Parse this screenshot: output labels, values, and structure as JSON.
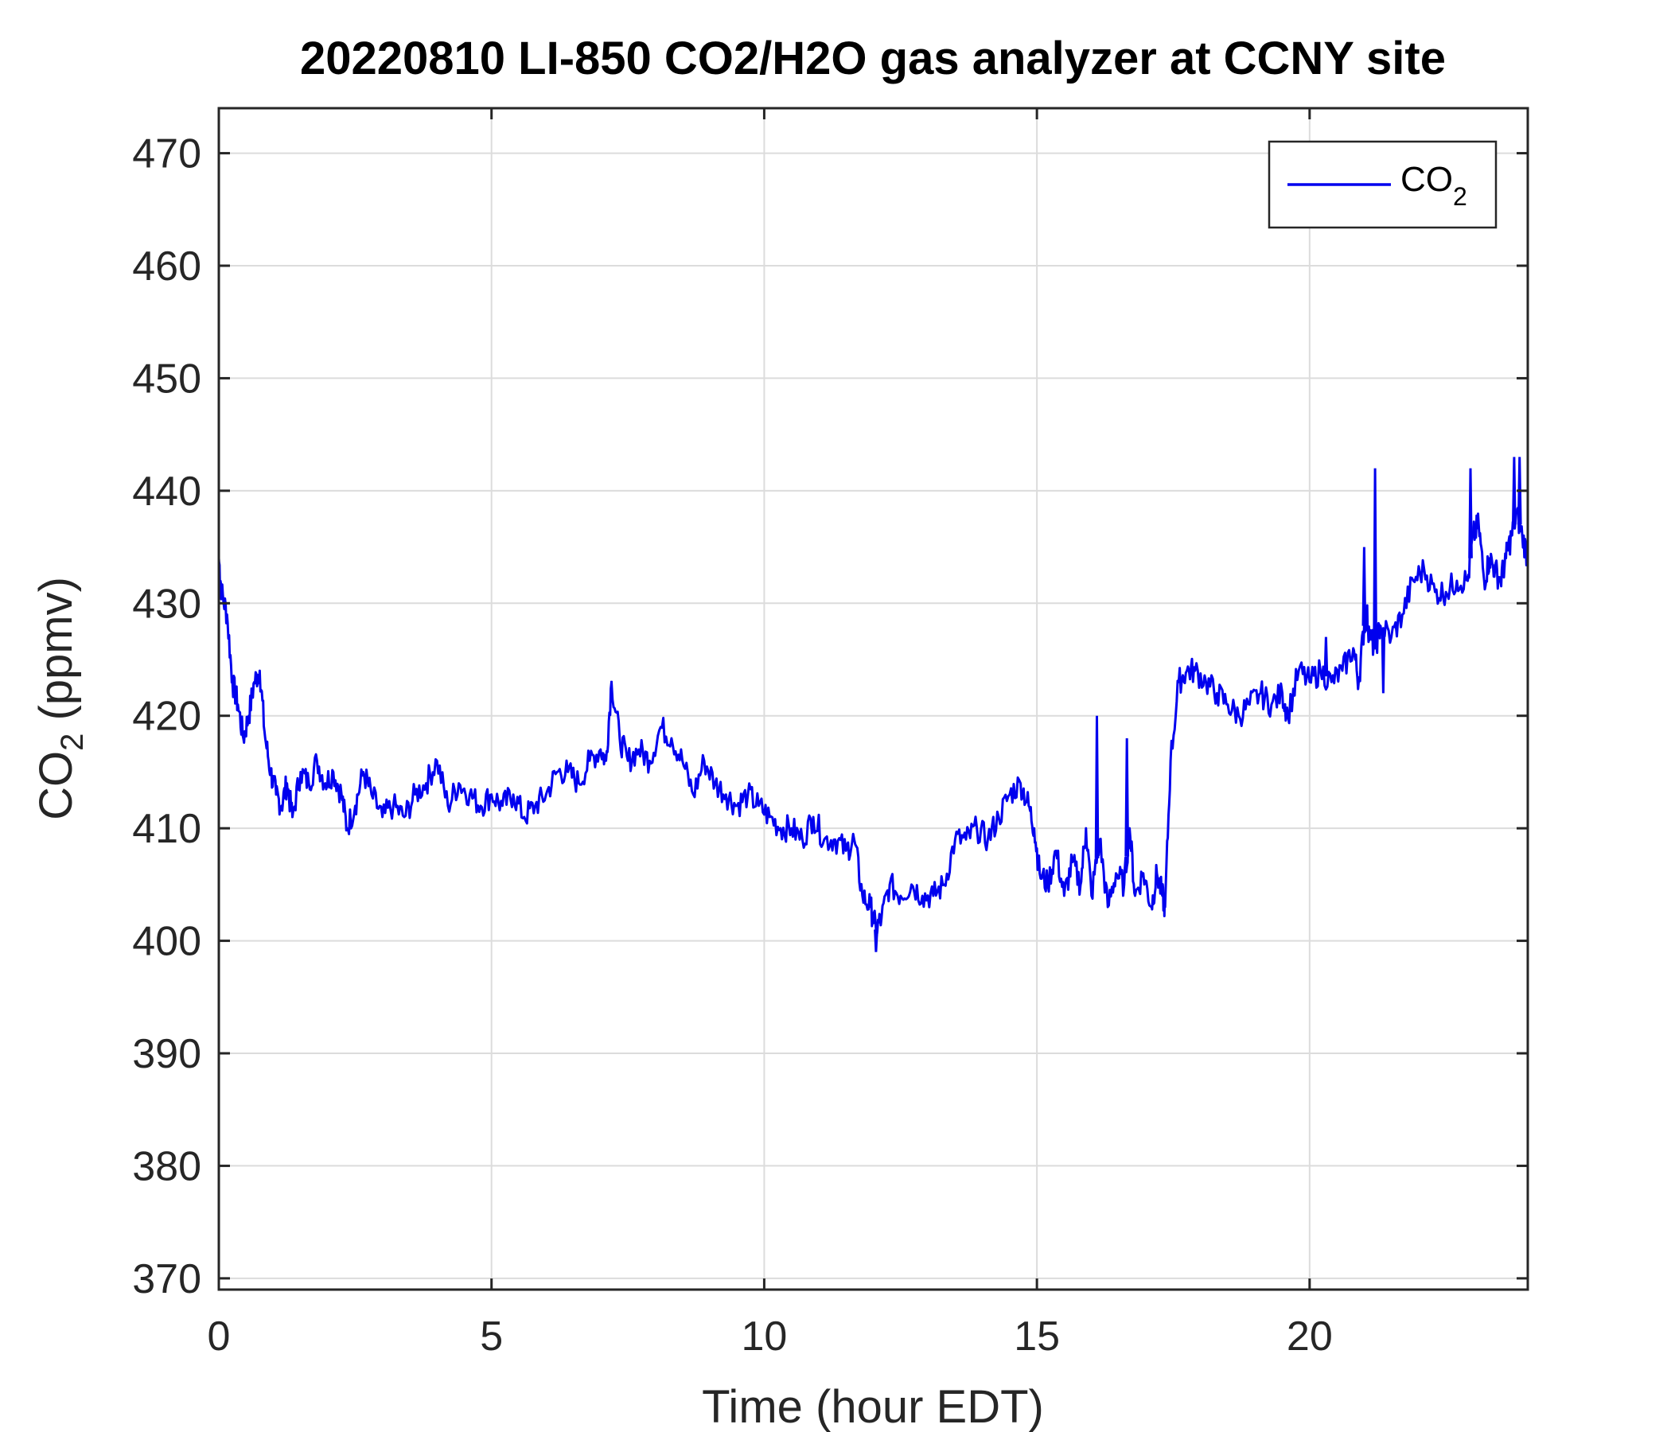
{
  "chart_data": {
    "type": "line",
    "title": "20220810 LI-850 CO2/H2O gas analyzer at CCNY site",
    "xlabel": "Time (hour EDT)",
    "ylabel_main": "CO",
    "ylabel_sub": "2",
    "ylabel_tail": " (ppmv)",
    "xlim": [
      0,
      24
    ],
    "ylim": [
      369,
      474
    ],
    "xticks": [
      0,
      5,
      10,
      15,
      20
    ],
    "yticks": [
      370,
      380,
      390,
      400,
      410,
      420,
      430,
      440,
      450,
      460,
      470
    ],
    "grid": true,
    "legend_position": "top-right",
    "colors": {
      "series": "#0000ee",
      "grid": "#dcdcdc",
      "axis": "#262626"
    },
    "series": [
      {
        "name_main": "CO",
        "name_sub": "2",
        "x": [
          0,
          0.05,
          0.15,
          0.25,
          0.35,
          0.45,
          0.55,
          0.65,
          0.75,
          0.85,
          0.95,
          1.05,
          1.15,
          1.25,
          1.35,
          1.5,
          1.65,
          1.8,
          1.95,
          2.1,
          2.25,
          2.35,
          2.5,
          2.65,
          2.8,
          3.0,
          3.2,
          3.4,
          3.6,
          3.8,
          4.0,
          4.2,
          4.4,
          4.6,
          4.8,
          5.0,
          5.2,
          5.4,
          5.6,
          5.8,
          6.0,
          6.2,
          6.4,
          6.6,
          6.8,
          7.0,
          7.1,
          7.2,
          7.35,
          7.5,
          7.7,
          7.9,
          8.1,
          8.3,
          8.5,
          8.7,
          8.9,
          9.1,
          9.3,
          9.5,
          9.7,
          9.9,
          10.1,
          10.3,
          10.5,
          10.7,
          10.9,
          11.1,
          11.3,
          11.5,
          11.65,
          11.8,
          11.95,
          12.05,
          12.15,
          12.3,
          12.5,
          12.7,
          12.9,
          13.1,
          13.3,
          13.5,
          13.7,
          13.9,
          14.1,
          14.3,
          14.5,
          14.7,
          14.85,
          14.95,
          15.05,
          15.2,
          15.35,
          15.5,
          15.65,
          15.8,
          15.9,
          16.0,
          16.15,
          16.3,
          16.45,
          16.6,
          16.7,
          16.8,
          16.95,
          17.1,
          17.2,
          17.3,
          17.35,
          17.45,
          17.6,
          17.75,
          17.9,
          18.1,
          18.3,
          18.5,
          18.7,
          18.9,
          19.1,
          19.3,
          19.5,
          19.6,
          19.8,
          20.0,
          20.2,
          20.4,
          20.6,
          20.8,
          20.9,
          21.0,
          21.05,
          21.1,
          21.2,
          21.3,
          21.5,
          21.7,
          21.9,
          22.1,
          22.3,
          22.5,
          22.7,
          22.9,
          23.0,
          23.1,
          23.2,
          23.3,
          23.4,
          23.5,
          23.6,
          23.7,
          23.8,
          23.9,
          24.0
        ],
        "y": [
          434,
          431,
          429,
          423,
          421,
          418,
          420,
          423,
          424,
          418,
          415,
          413,
          412,
          414,
          411,
          415,
          414,
          416,
          414,
          415,
          413,
          410,
          412,
          415,
          413,
          411,
          412,
          411,
          413,
          414,
          416,
          412,
          414,
          413,
          412,
          413,
          412,
          413,
          411,
          412,
          413,
          415,
          415,
          414,
          416,
          417,
          416,
          423,
          418,
          416,
          417,
          416,
          419,
          418,
          416,
          413,
          416,
          414,
          413,
          412,
          413,
          412,
          411,
          410,
          410,
          409,
          411,
          409,
          409,
          408,
          409,
          404,
          403,
          401,
          402,
          405,
          404,
          405,
          404,
          404,
          405,
          409,
          409,
          410,
          409,
          411,
          413,
          414,
          412,
          410,
          406,
          405,
          408,
          404,
          407,
          405,
          410,
          404,
          409,
          403,
          406,
          405,
          410,
          404,
          406,
          403,
          406,
          404,
          403,
          416,
          423,
          424,
          424,
          423,
          422,
          421,
          420,
          421,
          422,
          421,
          422,
          420,
          424,
          423,
          424,
          423,
          424,
          426,
          423,
          428,
          429,
          427,
          426,
          428,
          427,
          429,
          432,
          433,
          431,
          431,
          432,
          432,
          436,
          437,
          432,
          434,
          433,
          432,
          434,
          436,
          438,
          436,
          434
        ],
        "spikes": [
          [
            7.2,
            423
          ],
          [
            12.05,
            399
          ],
          [
            16.1,
            420
          ],
          [
            16.65,
            418
          ],
          [
            20.3,
            427
          ],
          [
            21.0,
            435
          ],
          [
            21.2,
            442
          ],
          [
            21.35,
            422
          ],
          [
            22.95,
            442
          ],
          [
            23.75,
            443
          ],
          [
            23.85,
            443
          ]
        ]
      }
    ]
  }
}
